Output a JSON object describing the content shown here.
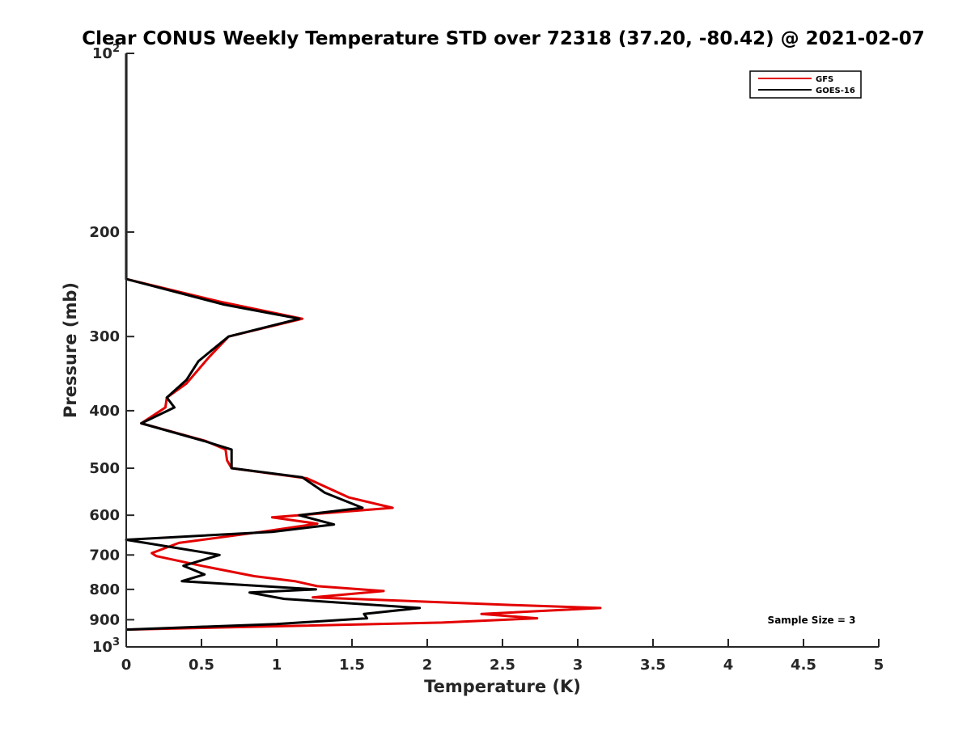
{
  "chart_data": {
    "type": "line",
    "title": "Clear CONUS Weekly Temperature STD over 72318 (37.20, -80.42) @ 2021-02-07",
    "xlabel": "Temperature (K)",
    "ylabel": "Pressure (mb)",
    "xlim": [
      0,
      5
    ],
    "ylim": [
      100,
      1000
    ],
    "yscale": "log",
    "y_reversed": true,
    "grid": false,
    "legend_position": "top-right",
    "x_ticks": [
      0,
      0.5,
      1,
      1.5,
      2,
      2.5,
      3,
      3.5,
      4,
      4.5,
      5
    ],
    "x_tick_labels": [
      "0",
      "0.5",
      "1",
      "1.5",
      "2",
      "2.5",
      "3",
      "3.5",
      "4",
      "4.5",
      "5"
    ],
    "y_ticks": [
      100,
      200,
      300,
      400,
      500,
      600,
      700,
      800,
      900,
      1000
    ],
    "y_tick_labels": [
      {
        "base": "10",
        "sup": "2"
      },
      {
        "base": "200",
        "sup": ""
      },
      {
        "base": "300",
        "sup": ""
      },
      {
        "base": "400",
        "sup": ""
      },
      {
        "base": "500",
        "sup": ""
      },
      {
        "base": "600",
        "sup": ""
      },
      {
        "base": "700",
        "sup": ""
      },
      {
        "base": "800",
        "sup": ""
      },
      {
        "base": "900",
        "sup": ""
      },
      {
        "base": "10",
        "sup": "3"
      }
    ],
    "annotation": "Sample Size = 3",
    "series": [
      {
        "name": "GFS",
        "color": "#e30000",
        "points": [
          [
            0,
            100
          ],
          [
            0,
            150
          ],
          [
            0,
            200
          ],
          [
            0,
            240
          ],
          [
            0.62,
            262
          ],
          [
            1.17,
            280
          ],
          [
            0.68,
            300
          ],
          [
            0.55,
            325
          ],
          [
            0.4,
            360
          ],
          [
            0.27,
            380
          ],
          [
            0.26,
            395
          ],
          [
            0.1,
            420
          ],
          [
            0.53,
            450
          ],
          [
            0.66,
            465
          ],
          [
            0.67,
            485
          ],
          [
            0.7,
            500
          ],
          [
            1.2,
            520
          ],
          [
            1.48,
            560
          ],
          [
            1.77,
            583
          ],
          [
            0.97,
            605
          ],
          [
            1.27,
            620
          ],
          [
            0.9,
            640
          ],
          [
            0.35,
            668
          ],
          [
            0.17,
            695
          ],
          [
            0.2,
            703
          ],
          [
            0.5,
            730
          ],
          [
            0.85,
            760
          ],
          [
            1.12,
            775
          ],
          [
            1.27,
            790
          ],
          [
            1.71,
            805
          ],
          [
            1.24,
            825
          ],
          [
            2.57,
            850
          ],
          [
            3.15,
            860
          ],
          [
            2.36,
            880
          ],
          [
            2.73,
            895
          ],
          [
            2.1,
            910
          ],
          [
            0,
            935
          ]
        ]
      },
      {
        "name": "GOES-16",
        "color": "#000000",
        "points": [
          [
            0,
            100
          ],
          [
            0,
            150
          ],
          [
            0,
            200
          ],
          [
            0,
            240
          ],
          [
            0.65,
            265
          ],
          [
            1.15,
            280
          ],
          [
            0.68,
            300
          ],
          [
            0.48,
            330
          ],
          [
            0.4,
            355
          ],
          [
            0.27,
            380
          ],
          [
            0.32,
            395
          ],
          [
            0.1,
            420
          ],
          [
            0.52,
            450
          ],
          [
            0.7,
            465
          ],
          [
            0.7,
            485
          ],
          [
            0.7,
            500
          ],
          [
            1.17,
            518
          ],
          [
            1.32,
            550
          ],
          [
            1.57,
            583
          ],
          [
            1.15,
            600
          ],
          [
            1.38,
            622
          ],
          [
            0.97,
            640
          ],
          [
            0,
            660
          ],
          [
            0.62,
            700
          ],
          [
            0.38,
            730
          ],
          [
            0.52,
            755
          ],
          [
            0.37,
            775
          ],
          [
            1.26,
            800
          ],
          [
            0.82,
            810
          ],
          [
            1.05,
            830
          ],
          [
            1.95,
            860
          ],
          [
            1.58,
            880
          ],
          [
            1.6,
            895
          ],
          [
            1,
            915
          ],
          [
            0,
            935
          ]
        ]
      }
    ]
  }
}
